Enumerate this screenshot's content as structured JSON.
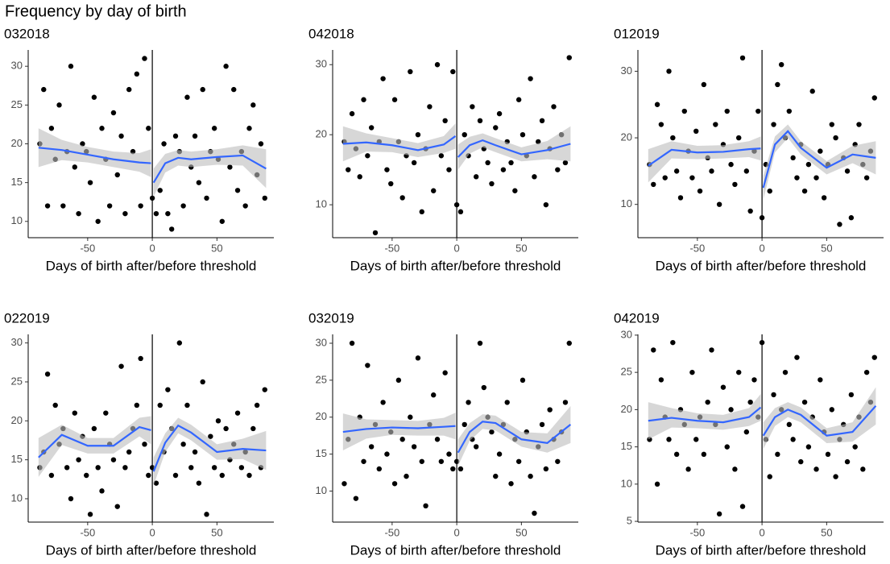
{
  "title": "Frequency by day of birth",
  "chart_data": [
    {
      "type": "scatter",
      "title": "032018",
      "x_label": "Days of birth after/before threshold",
      "xlim": [
        -96,
        94
      ],
      "xticks": [
        -50,
        0,
        50
      ],
      "ylim": [
        7.9,
        32.1
      ],
      "yticks": [
        10,
        15,
        20,
        25,
        30
      ],
      "threshold": 0,
      "x": [
        -87,
        -84,
        -81,
        -78,
        -75,
        -72,
        -69,
        -66,
        -63,
        -60,
        -57,
        -54,
        -51,
        -48,
        -45,
        -42,
        -39,
        -36,
        -33,
        -30,
        -27,
        -24,
        -21,
        -18,
        -15,
        -12,
        -9,
        -6,
        -3,
        0,
        3,
        6,
        9,
        12,
        15,
        18,
        21,
        24,
        27,
        30,
        33,
        36,
        39,
        42,
        45,
        48,
        51,
        54,
        57,
        60,
        63,
        66,
        69,
        72,
        75,
        78,
        81,
        84,
        87
      ],
      "points": {
        "color": "#000000",
        "values": [
          20,
          27,
          12,
          22,
          18,
          25,
          12,
          19,
          30,
          17,
          11,
          20,
          19,
          15,
          26,
          10,
          22,
          18,
          12,
          24,
          16,
          21,
          11,
          27,
          19,
          29,
          12,
          31,
          22,
          13,
          11,
          14,
          20,
          11,
          9,
          21,
          19,
          12,
          26,
          17,
          21,
          15,
          27,
          13,
          19,
          22,
          18,
          10,
          30,
          17,
          27,
          14,
          19,
          12,
          22,
          25,
          16,
          20,
          13
        ]
      },
      "fit": {
        "color": "#3366ff",
        "band_color": "#bdbdbd",
        "x": [
          -88,
          -70,
          -50,
          -30,
          -10,
          -1,
          0,
          1,
          10,
          20,
          30,
          50,
          70,
          88
        ],
        "values": [
          19.5,
          19.2,
          18.6,
          18.0,
          17.6,
          17.5,
          null,
          15.0,
          17.5,
          18.2,
          18.0,
          18.3,
          18.5,
          16.8
        ],
        "lower": [
          17.0,
          17.9,
          17.6,
          17.0,
          16.4,
          15.7,
          null,
          13.2,
          16.3,
          17.2,
          17.0,
          17.3,
          17.2,
          14.3
        ],
        "upper": [
          22.0,
          20.5,
          19.6,
          19.0,
          18.8,
          19.3,
          null,
          16.8,
          18.7,
          19.2,
          19.0,
          19.3,
          19.8,
          19.3
        ]
      }
    },
    {
      "type": "scatter",
      "title": "042018",
      "x_label": "Days of birth after/before threshold",
      "xlim": [
        -96,
        94
      ],
      "xticks": [
        -50,
        0,
        50
      ],
      "ylim": [
        5.3,
        32.1
      ],
      "yticks": [
        10,
        20,
        30
      ],
      "threshold": 0,
      "x": [
        -87,
        -84,
        -81,
        -78,
        -75,
        -72,
        -69,
        -66,
        -63,
        -60,
        -57,
        -54,
        -51,
        -48,
        -45,
        -42,
        -39,
        -36,
        -33,
        -30,
        -27,
        -24,
        -21,
        -18,
        -15,
        -12,
        -9,
        -6,
        -3,
        0,
        3,
        6,
        9,
        12,
        15,
        18,
        21,
        24,
        27,
        30,
        33,
        36,
        39,
        42,
        45,
        48,
        51,
        54,
        57,
        60,
        63,
        66,
        69,
        72,
        75,
        78,
        81,
        84,
        87
      ],
      "points": {
        "color": "#000000",
        "values": [
          19,
          15,
          23,
          18,
          14,
          25,
          17,
          21,
          6,
          19,
          28,
          15,
          13,
          25,
          19,
          11,
          17,
          29,
          16,
          20,
          9,
          18,
          24,
          12,
          30,
          17,
          22,
          15,
          29,
          10,
          9,
          20,
          17,
          24,
          14,
          22,
          18,
          16,
          13,
          21,
          23,
          15,
          19,
          16,
          12,
          25,
          20,
          17,
          28,
          14,
          19,
          22,
          10,
          18,
          24,
          15,
          20,
          16,
          31
        ]
      },
      "fit": {
        "color": "#3366ff",
        "band_color": "#bdbdbd",
        "x": [
          -88,
          -70,
          -50,
          -30,
          -10,
          -1,
          0,
          1,
          10,
          20,
          30,
          50,
          70,
          88
        ],
        "values": [
          18.7,
          18.9,
          18.5,
          17.8,
          18.6,
          19.8,
          null,
          16.8,
          18.5,
          19.2,
          18.5,
          17.2,
          17.8,
          18.7
        ],
        "lower": [
          16.2,
          17.6,
          17.5,
          16.8,
          17.4,
          18.0,
          null,
          15.0,
          17.3,
          18.2,
          17.5,
          16.2,
          16.5,
          16.2
        ],
        "upper": [
          21.2,
          20.2,
          19.5,
          18.8,
          19.8,
          21.6,
          null,
          18.6,
          19.7,
          20.2,
          19.5,
          18.2,
          19.1,
          21.2
        ]
      }
    },
    {
      "type": "scatter",
      "title": "012019",
      "x_label": "Days of birth after/before threshold",
      "xlim": [
        -96,
        94
      ],
      "xticks": [
        -50,
        0,
        50
      ],
      "ylim": [
        5.0,
        33.2
      ],
      "yticks": [
        10,
        20,
        30
      ],
      "threshold": 0,
      "x": [
        -87,
        -84,
        -81,
        -78,
        -75,
        -72,
        -69,
        -66,
        -63,
        -60,
        -57,
        -54,
        -51,
        -48,
        -45,
        -42,
        -39,
        -36,
        -33,
        -30,
        -27,
        -24,
        -21,
        -18,
        -15,
        -12,
        -9,
        -6,
        -3,
        0,
        3,
        6,
        9,
        12,
        15,
        18,
        21,
        24,
        27,
        30,
        33,
        36,
        39,
        42,
        45,
        48,
        51,
        54,
        57,
        60,
        63,
        66,
        69,
        72,
        75,
        78,
        81,
        84,
        87
      ],
      "points": {
        "color": "#000000",
        "values": [
          16,
          13,
          25,
          22,
          14,
          30,
          20,
          15,
          11,
          24,
          18,
          14,
          21,
          12,
          28,
          17,
          15,
          22,
          10,
          19,
          24,
          16,
          13,
          20,
          32,
          15,
          9,
          18,
          24,
          8,
          16,
          12,
          22,
          28,
          31,
          20,
          24,
          17,
          14,
          19,
          12,
          16,
          27,
          14,
          18,
          11,
          16,
          22,
          20,
          7,
          17,
          15,
          8,
          19,
          22,
          16,
          14,
          18,
          26
        ]
      },
      "fit": {
        "color": "#3366ff",
        "band_color": "#bdbdbd",
        "x": [
          -88,
          -70,
          -50,
          -30,
          -10,
          -1,
          0,
          1,
          10,
          20,
          30,
          50,
          70,
          88
        ],
        "values": [
          15.8,
          18.2,
          17.8,
          17.9,
          18.3,
          18.4,
          null,
          12.5,
          19.0,
          21.0,
          18.5,
          15.5,
          17.5,
          17.0
        ],
        "lower": [
          13.3,
          16.9,
          16.8,
          16.9,
          17.1,
          16.6,
          null,
          10.7,
          17.8,
          20.0,
          17.5,
          14.5,
          16.2,
          14.5
        ],
        "upper": [
          18.3,
          19.5,
          18.8,
          18.9,
          19.5,
          20.2,
          null,
          14.3,
          20.2,
          22.0,
          19.5,
          16.5,
          18.8,
          19.5
        ]
      }
    },
    {
      "type": "scatter",
      "title": "022019",
      "x_label": "Days of birth after/before threshold",
      "xlim": [
        -96,
        94
      ],
      "xticks": [
        -50,
        0,
        50
      ],
      "ylim": [
        7.0,
        31.1
      ],
      "yticks": [
        10,
        15,
        20,
        25,
        30
      ],
      "threshold": 0,
      "x": [
        -87,
        -84,
        -81,
        -78,
        -75,
        -72,
        -69,
        -66,
        -63,
        -60,
        -57,
        -54,
        -51,
        -48,
        -45,
        -42,
        -39,
        -36,
        -33,
        -30,
        -27,
        -24,
        -21,
        -18,
        -15,
        -12,
        -9,
        -6,
        -3,
        0,
        3,
        6,
        9,
        12,
        15,
        18,
        21,
        24,
        27,
        30,
        33,
        36,
        39,
        42,
        45,
        48,
        51,
        54,
        57,
        60,
        63,
        66,
        69,
        72,
        75,
        78,
        81,
        84,
        87
      ],
      "points": {
        "color": "#000000",
        "values": [
          14,
          16,
          26,
          13,
          22,
          17,
          19,
          14,
          10,
          21,
          15,
          18,
          13,
          8,
          19,
          14,
          11,
          21,
          17,
          15,
          9,
          27,
          14,
          16,
          19,
          22,
          28,
          17,
          13,
          14,
          12,
          22,
          16,
          24,
          19,
          13,
          30,
          17,
          22,
          14,
          16,
          12,
          25,
          8,
          18,
          14,
          20,
          13,
          19,
          15,
          17,
          21,
          14,
          16,
          13,
          19,
          22,
          14,
          24
        ]
      },
      "fit": {
        "color": "#3366ff",
        "band_color": "#bdbdbd",
        "x": [
          -88,
          -70,
          -50,
          -30,
          -10,
          -1,
          0,
          1,
          10,
          20,
          30,
          50,
          70,
          88
        ],
        "values": [
          15.3,
          18.2,
          16.8,
          16.8,
          19.2,
          18.8,
          null,
          13.5,
          17.2,
          19.4,
          18.5,
          16.0,
          16.4,
          16.2
        ],
        "lower": [
          12.8,
          16.9,
          15.8,
          15.8,
          18.0,
          17.0,
          null,
          11.7,
          16.0,
          18.4,
          17.5,
          15.0,
          15.1,
          13.7
        ],
        "upper": [
          17.8,
          19.5,
          17.8,
          17.8,
          20.4,
          20.6,
          null,
          15.3,
          18.4,
          20.4,
          19.5,
          17.0,
          17.7,
          18.7
        ]
      }
    },
    {
      "type": "scatter",
      "title": "032019",
      "x_label": "Days of birth after/before threshold",
      "xlim": [
        -96,
        94
      ],
      "xticks": [
        -50,
        0,
        50
      ],
      "ylim": [
        5.8,
        31.2
      ],
      "yticks": [
        10,
        15,
        20,
        25,
        30
      ],
      "threshold": 0,
      "x": [
        -87,
        -84,
        -81,
        -78,
        -75,
        -72,
        -69,
        -66,
        -63,
        -60,
        -57,
        -54,
        -51,
        -48,
        -45,
        -42,
        -39,
        -36,
        -33,
        -30,
        -27,
        -24,
        -21,
        -18,
        -15,
        -12,
        -9,
        -6,
        -3,
        0,
        3,
        6,
        9,
        12,
        15,
        18,
        21,
        24,
        27,
        30,
        33,
        36,
        39,
        42,
        45,
        48,
        51,
        54,
        57,
        60,
        63,
        66,
        69,
        72,
        75,
        78,
        81,
        84,
        87
      ],
      "points": {
        "color": "#000000",
        "values": [
          11,
          17,
          30,
          9,
          20,
          14,
          27,
          16,
          19,
          13,
          22,
          15,
          18,
          11,
          25,
          17,
          12,
          20,
          16,
          28,
          14,
          8,
          19,
          23,
          17,
          14,
          26,
          15,
          13,
          14,
          13,
          19,
          22,
          17,
          16,
          30,
          24,
          20,
          18,
          12,
          15,
          19,
          22,
          11,
          17,
          14,
          25,
          18,
          12,
          7,
          16,
          19,
          13,
          21,
          17,
          14,
          18,
          22,
          30
        ]
      },
      "fit": {
        "color": "#3366ff",
        "band_color": "#bdbdbd",
        "x": [
          -88,
          -70,
          -50,
          -30,
          -10,
          -1,
          0,
          1,
          10,
          20,
          30,
          50,
          70,
          88
        ],
        "values": [
          18.0,
          18.4,
          18.6,
          18.5,
          18.7,
          18.8,
          null,
          15.2,
          18.0,
          19.4,
          19.2,
          17.0,
          16.5,
          19.0
        ],
        "lower": [
          15.5,
          17.1,
          17.6,
          17.5,
          17.5,
          17.0,
          null,
          13.4,
          16.8,
          18.4,
          18.2,
          16.0,
          15.2,
          16.5
        ],
        "upper": [
          20.5,
          19.7,
          19.6,
          19.5,
          19.9,
          20.6,
          null,
          17.0,
          19.2,
          20.4,
          20.2,
          18.0,
          17.8,
          21.5
        ]
      }
    },
    {
      "type": "scatter",
      "title": "042019",
      "x_label": "Days of birth after/before threshold",
      "xlim": [
        -96,
        94
      ],
      "xticks": [
        -50,
        0,
        50
      ],
      "ylim": [
        4.9,
        30.1
      ],
      "yticks": [
        5,
        10,
        15,
        20,
        25,
        30
      ],
      "threshold": 0,
      "x": [
        -87,
        -84,
        -81,
        -78,
        -75,
        -72,
        -69,
        -66,
        -63,
        -60,
        -57,
        -54,
        -51,
        -48,
        -45,
        -42,
        -39,
        -36,
        -33,
        -30,
        -27,
        -24,
        -21,
        -18,
        -15,
        -12,
        -9,
        -6,
        -3,
        0,
        3,
        6,
        9,
        12,
        15,
        18,
        21,
        24,
        27,
        30,
        33,
        36,
        39,
        42,
        45,
        48,
        51,
        54,
        57,
        60,
        63,
        66,
        69,
        72,
        75,
        78,
        81,
        84,
        87
      ],
      "points": {
        "color": "#000000",
        "values": [
          16,
          28,
          10,
          24,
          19,
          16,
          29,
          14,
          20,
          18,
          12,
          25,
          16,
          19,
          14,
          21,
          28,
          18,
          6,
          23,
          15,
          20,
          12,
          25,
          7,
          17,
          21,
          24,
          19,
          29,
          16,
          11,
          22,
          14,
          20,
          25,
          18,
          16,
          27,
          13,
          21,
          15,
          19,
          12,
          24,
          17,
          14,
          20,
          11,
          16,
          18,
          13,
          22,
          15,
          19,
          12,
          25,
          21,
          27
        ]
      },
      "fit": {
        "color": "#3366ff",
        "band_color": "#bdbdbd",
        "x": [
          -88,
          -70,
          -50,
          -30,
          -10,
          -1,
          0,
          1,
          10,
          20,
          30,
          50,
          70,
          88
        ],
        "values": [
          18.5,
          18.9,
          18.5,
          18.3,
          19.0,
          20.3,
          null,
          16.5,
          19.0,
          20.0,
          19.3,
          16.5,
          17.0,
          20.5
        ],
        "lower": [
          16.0,
          17.6,
          17.5,
          17.3,
          17.8,
          18.5,
          null,
          14.7,
          17.8,
          19.0,
          18.3,
          15.5,
          15.7,
          18.0
        ],
        "upper": [
          21.0,
          20.2,
          19.5,
          19.3,
          20.2,
          22.1,
          null,
          18.3,
          20.2,
          21.0,
          20.3,
          17.5,
          18.3,
          23.0
        ]
      }
    }
  ]
}
